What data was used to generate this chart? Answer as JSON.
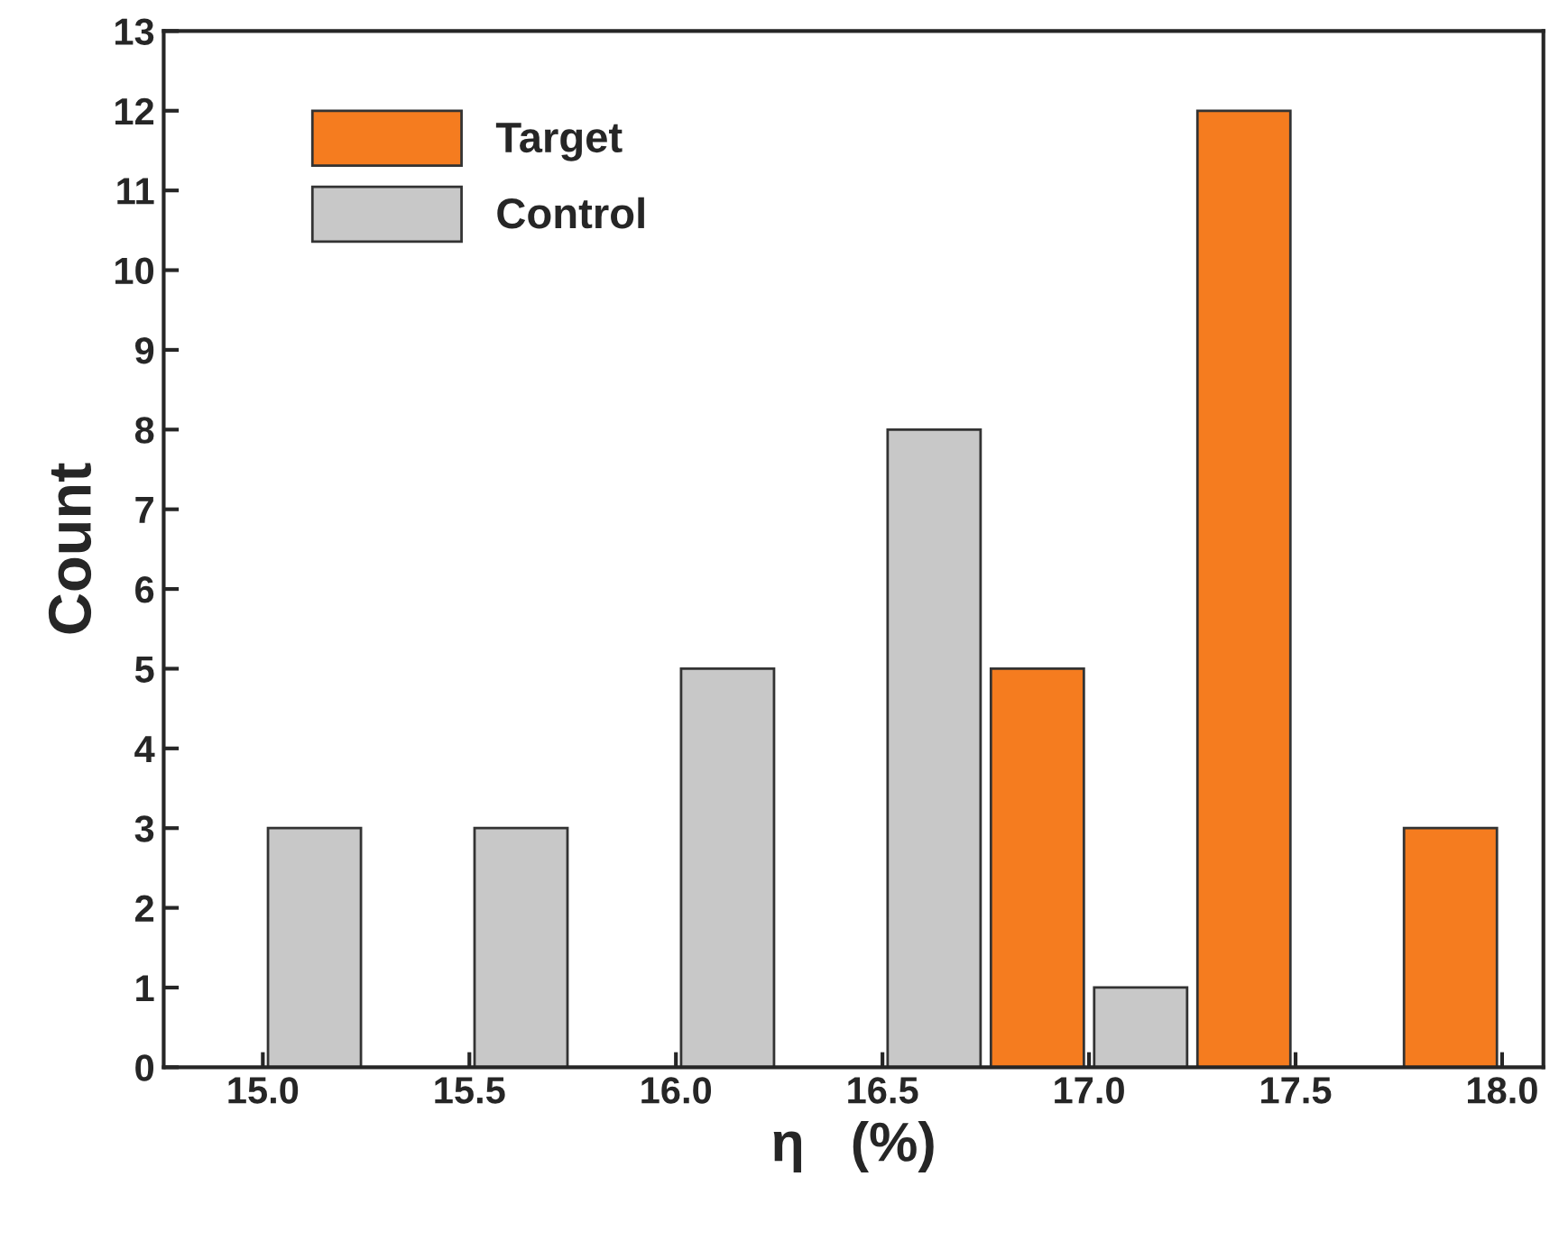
{
  "chart_data": {
    "type": "bar",
    "xlabel": "η   (%)",
    "ylabel": "Count",
    "series": [
      {
        "name": "Target",
        "color": "#f57c1f",
        "x": [
          16.875,
          17.375,
          17.875
        ],
        "values": [
          5,
          12,
          3
        ]
      },
      {
        "name": "Control",
        "color": "#c8c8c8",
        "x": [
          15.125,
          15.625,
          16.125,
          16.625,
          17.125
        ],
        "values": [
          3,
          3,
          5,
          8,
          1
        ]
      }
    ],
    "xlim": [
      14.76,
      18.1
    ],
    "xticks": [
      {
        "value": 15.0,
        "label": "15.0"
      },
      {
        "value": 15.5,
        "label": "15.5"
      },
      {
        "value": 16.0,
        "label": "16.0"
      },
      {
        "value": 16.5,
        "label": "16.5"
      },
      {
        "value": 17.0,
        "label": "17.0"
      },
      {
        "value": 17.5,
        "label": "17.5"
      },
      {
        "value": 18.0,
        "label": "18.0"
      }
    ],
    "ylim": [
      0,
      13
    ],
    "yticks": [
      0,
      1,
      2,
      3,
      4,
      5,
      6,
      7,
      8,
      9,
      10,
      11,
      12,
      13
    ],
    "grid": false,
    "legend": "top left"
  }
}
